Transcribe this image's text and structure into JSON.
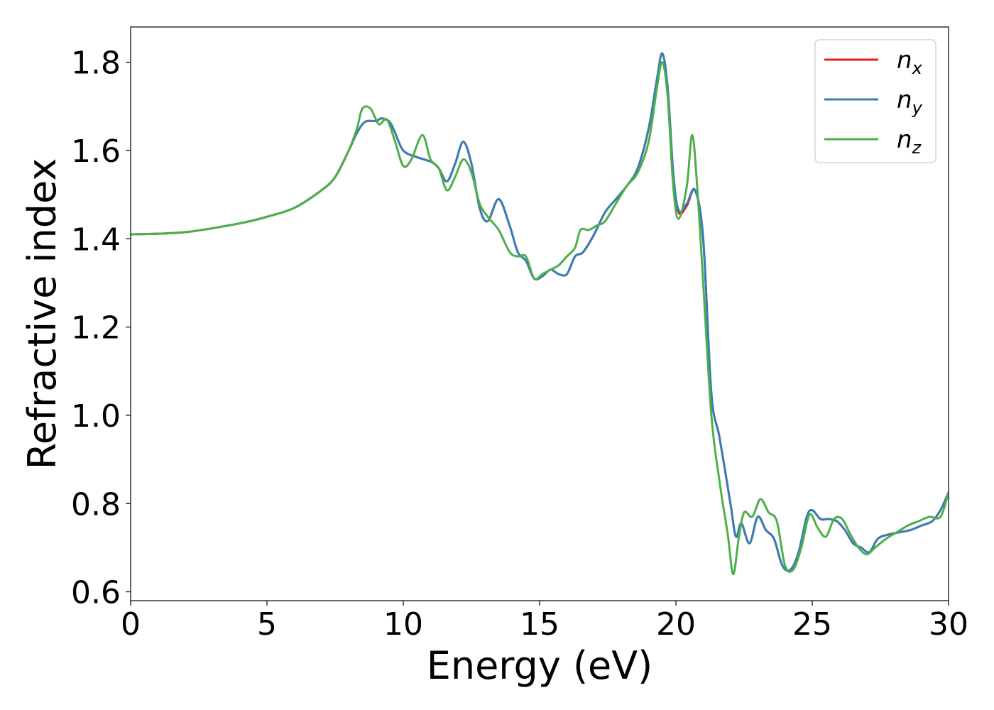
{
  "chart_data": {
    "type": "line",
    "title": "",
    "xlabel": "Energy (eV)",
    "ylabel": "Refractive index",
    "xlim": [
      0,
      30
    ],
    "ylim": [
      0.58,
      1.88
    ],
    "xticks": [
      0,
      5,
      10,
      15,
      20,
      25,
      30
    ],
    "xtick_labels": [
      "0",
      "5",
      "10",
      "15",
      "20",
      "25",
      "30"
    ],
    "yticks": [
      0.6,
      0.8,
      1.0,
      1.2,
      1.4,
      1.6,
      1.8
    ],
    "ytick_labels": [
      "0.6",
      "0.8",
      "1.0",
      "1.2",
      "1.4",
      "1.6",
      "1.8"
    ],
    "grid": false,
    "legend_position": "top-right",
    "series": [
      {
        "name": "n",
        "subscript": "x",
        "color": "#e41a1c",
        "x": [
          0,
          2,
          4,
          5,
          6,
          7,
          7.5,
          8,
          8.3,
          8.6,
          9,
          9.2,
          9.5,
          9.7,
          10,
          10.5,
          11,
          11.3,
          11.6,
          11.9,
          12.2,
          12.5,
          12.8,
          13.1,
          13.5,
          13.9,
          14.2,
          14.5,
          14.8,
          15.1,
          15.4,
          15.7,
          16,
          16.3,
          16.6,
          17,
          17.4,
          17.8,
          18.2,
          18.6,
          19,
          19.3,
          19.5,
          19.7,
          19.9,
          20.1,
          20.4,
          20.7,
          21,
          21.3,
          21.6,
          22,
          22.2,
          22.4,
          22.7,
          23,
          23.3,
          23.6,
          23.9,
          24.2,
          24.5,
          24.8,
          25,
          25.3,
          25.6,
          25.9,
          26.2,
          26.5,
          26.8,
          27.1,
          27.4,
          27.8,
          28.2,
          28.6,
          29,
          29.4,
          29.7,
          30
        ],
        "y": [
          1.41,
          1.415,
          1.435,
          1.45,
          1.47,
          1.51,
          1.54,
          1.6,
          1.64,
          1.665,
          1.667,
          1.673,
          1.665,
          1.64,
          1.6,
          1.585,
          1.575,
          1.56,
          1.53,
          1.57,
          1.62,
          1.57,
          1.47,
          1.44,
          1.49,
          1.43,
          1.37,
          1.35,
          1.31,
          1.315,
          1.33,
          1.32,
          1.32,
          1.36,
          1.37,
          1.41,
          1.46,
          1.49,
          1.52,
          1.56,
          1.65,
          1.76,
          1.82,
          1.74,
          1.55,
          1.46,
          1.475,
          1.51,
          1.4,
          1.05,
          0.95,
          0.8,
          0.725,
          0.755,
          0.71,
          0.77,
          0.74,
          0.72,
          0.66,
          0.65,
          0.69,
          0.77,
          0.785,
          0.765,
          0.765,
          0.76,
          0.74,
          0.71,
          0.7,
          0.69,
          0.72,
          0.73,
          0.735,
          0.74,
          0.75,
          0.76,
          0.785,
          0.825
        ]
      },
      {
        "name": "n",
        "subscript": "y",
        "color": "#377eb8",
        "x": [
          0,
          2,
          4,
          5,
          6,
          7,
          7.5,
          8,
          8.3,
          8.6,
          9,
          9.2,
          9.5,
          9.7,
          10,
          10.5,
          11,
          11.3,
          11.6,
          11.9,
          12.2,
          12.5,
          12.8,
          13.1,
          13.5,
          13.9,
          14.2,
          14.5,
          14.8,
          15.1,
          15.4,
          15.7,
          16,
          16.3,
          16.6,
          17,
          17.4,
          17.8,
          18.2,
          18.6,
          19,
          19.3,
          19.5,
          19.7,
          19.9,
          20.1,
          20.4,
          20.7,
          21,
          21.3,
          21.6,
          22,
          22.2,
          22.4,
          22.7,
          23,
          23.3,
          23.6,
          23.9,
          24.2,
          24.5,
          24.8,
          25,
          25.3,
          25.6,
          25.9,
          26.2,
          26.5,
          26.8,
          27.1,
          27.4,
          27.8,
          28.2,
          28.6,
          29,
          29.4,
          29.7,
          30
        ],
        "y": [
          1.41,
          1.415,
          1.435,
          1.45,
          1.47,
          1.51,
          1.54,
          1.6,
          1.64,
          1.665,
          1.667,
          1.673,
          1.665,
          1.64,
          1.6,
          1.585,
          1.575,
          1.56,
          1.53,
          1.57,
          1.62,
          1.57,
          1.47,
          1.44,
          1.49,
          1.43,
          1.37,
          1.35,
          1.31,
          1.315,
          1.33,
          1.32,
          1.32,
          1.36,
          1.37,
          1.41,
          1.46,
          1.49,
          1.52,
          1.56,
          1.65,
          1.76,
          1.82,
          1.74,
          1.55,
          1.465,
          1.48,
          1.51,
          1.4,
          1.05,
          0.95,
          0.8,
          0.725,
          0.755,
          0.71,
          0.77,
          0.74,
          0.72,
          0.66,
          0.65,
          0.69,
          0.77,
          0.785,
          0.765,
          0.765,
          0.76,
          0.74,
          0.71,
          0.7,
          0.69,
          0.72,
          0.73,
          0.735,
          0.74,
          0.75,
          0.76,
          0.785,
          0.825
        ]
      },
      {
        "name": "n",
        "subscript": "z",
        "color": "#4daf4a",
        "x": [
          0,
          2,
          4,
          5,
          6,
          7,
          7.5,
          8,
          8.3,
          8.5,
          8.8,
          9.1,
          9.4,
          9.7,
          10,
          10.3,
          10.7,
          11,
          11.3,
          11.6,
          11.9,
          12.2,
          12.5,
          12.8,
          13.1,
          13.5,
          13.9,
          14.2,
          14.5,
          14.8,
          15.1,
          15.4,
          15.7,
          16,
          16.3,
          16.5,
          16.8,
          17.1,
          17.4,
          17.8,
          18.2,
          18.6,
          19,
          19.3,
          19.5,
          19.7,
          19.9,
          20.1,
          20.4,
          20.6,
          20.8,
          21,
          21.3,
          21.6,
          21.9,
          22.1,
          22.3,
          22.5,
          22.8,
          23.1,
          23.4,
          23.7,
          24,
          24.3,
          24.6,
          24.9,
          25.2,
          25.5,
          25.8,
          26.1,
          26.4,
          26.7,
          27,
          27.3,
          27.7,
          28.1,
          28.5,
          28.9,
          29.3,
          29.7,
          30
        ],
        "y": [
          1.41,
          1.415,
          1.435,
          1.45,
          1.47,
          1.51,
          1.54,
          1.6,
          1.65,
          1.695,
          1.695,
          1.66,
          1.67,
          1.62,
          1.565,
          1.58,
          1.635,
          1.58,
          1.56,
          1.51,
          1.54,
          1.58,
          1.55,
          1.48,
          1.45,
          1.42,
          1.37,
          1.36,
          1.36,
          1.31,
          1.32,
          1.33,
          1.34,
          1.36,
          1.38,
          1.42,
          1.42,
          1.43,
          1.44,
          1.48,
          1.52,
          1.55,
          1.62,
          1.74,
          1.8,
          1.72,
          1.52,
          1.445,
          1.52,
          1.635,
          1.5,
          1.3,
          1.0,
          0.85,
          0.73,
          0.64,
          0.72,
          0.78,
          0.77,
          0.81,
          0.78,
          0.76,
          0.66,
          0.65,
          0.7,
          0.775,
          0.745,
          0.725,
          0.765,
          0.765,
          0.73,
          0.7,
          0.685,
          0.7,
          0.72,
          0.735,
          0.75,
          0.76,
          0.77,
          0.77,
          0.825
        ]
      }
    ]
  }
}
